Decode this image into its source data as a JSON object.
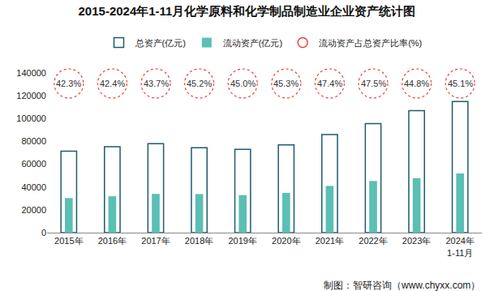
{
  "chart_data": {
    "type": "bar",
    "title": "2015-2024年1-11月化学原料和化学制品制造业企业资产统计图",
    "categories": [
      "2015年",
      "2016年",
      "2017年",
      "2018年",
      "2019年",
      "2020年",
      "2021年",
      "2022年",
      "2023年",
      "2024年1-11月"
    ],
    "series": [
      {
        "name": "总资产(亿元)",
        "type": "bar",
        "marker": "hollow",
        "color": "#1f5b6e",
        "values": [
          71500,
          75300,
          78000,
          74500,
          73000,
          77000,
          86000,
          95500,
          107000,
          115000
        ]
      },
      {
        "name": "流动资产(亿元)",
        "type": "bar",
        "color": "#5bbfb5",
        "values": [
          30300,
          31900,
          34000,
          33800,
          32900,
          34800,
          41000,
          45300,
          47800,
          51900
        ]
      },
      {
        "name": "流动资产占总资产比率(%)",
        "type": "scatter",
        "marker": "circle",
        "line_style": "dotted",
        "color": "#e8453c",
        "data_labels": true,
        "values": [
          42.3,
          42.4,
          43.7,
          45.2,
          45.0,
          45.3,
          47.4,
          47.5,
          44.8,
          45.1
        ],
        "value_labels": [
          "42.3%",
          "42.4%",
          "43.7%",
          "45.2%",
          "45.0%",
          "45.3%",
          "47.4%",
          "47.5%",
          "44.8%",
          "45.1%"
        ]
      }
    ],
    "ylim": [
      0,
      140000
    ],
    "yticks": [
      0,
      20000,
      40000,
      60000,
      80000,
      100000,
      120000,
      140000
    ],
    "grid": false,
    "legend": "top",
    "annotations": [
      "制图：智研咨询（www.chyxx.com）"
    ]
  }
}
